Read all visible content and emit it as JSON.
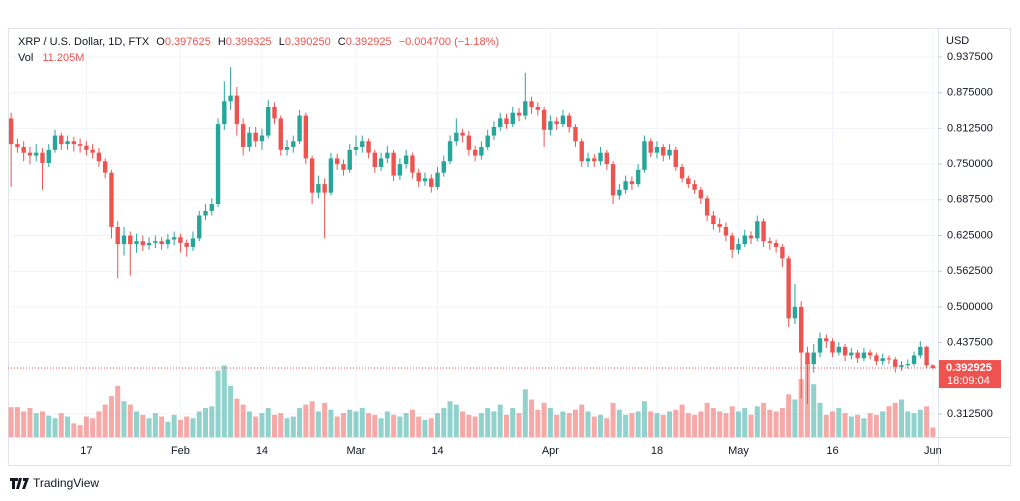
{
  "chart_data": {
    "type": "candlestick",
    "title": "XRP / U.S. Dollar, 1D, FTX",
    "ohlc_letters": [
      "O",
      "H",
      "L",
      "C"
    ],
    "header_value_labels": [
      "0.397625",
      "0.399325",
      "0.390250",
      "0.392925"
    ],
    "change": "−0.004700 (−1.18%)",
    "volume_name": "Vol",
    "volume_label": "11.205M",
    "axis_unit": "USD",
    "countdown": "18:09:04",
    "footer": "TradingView",
    "up_color": "#26a69a",
    "down_color": "#ef5350",
    "grid": true,
    "categories": [
      null,
      null,
      null,
      null,
      null,
      null,
      null,
      null,
      null,
      null,
      null,
      null,
      "17",
      null,
      null,
      null,
      null,
      null,
      null,
      null,
      null,
      null,
      null,
      null,
      null,
      null,
      null,
      "Feb",
      null,
      null,
      null,
      null,
      null,
      null,
      null,
      null,
      null,
      null,
      null,
      null,
      "14",
      null,
      null,
      null,
      null,
      null,
      null,
      null,
      null,
      null,
      null,
      null,
      null,
      null,
      null,
      "Mar",
      null,
      null,
      null,
      null,
      null,
      null,
      null,
      null,
      null,
      null,
      null,
      null,
      "14",
      null,
      null,
      null,
      null,
      null,
      null,
      null,
      null,
      null,
      null,
      null,
      null,
      null,
      null,
      null,
      null,
      null,
      "Apr",
      null,
      null,
      null,
      null,
      null,
      null,
      null,
      null,
      null,
      null,
      null,
      null,
      null,
      null,
      null,
      null,
      "18",
      null,
      null,
      null,
      null,
      null,
      null,
      null,
      null,
      null,
      null,
      null,
      null,
      "May",
      null,
      null,
      null,
      null,
      null,
      null,
      null,
      null,
      null,
      null,
      null,
      null,
      null,
      null,
      "16",
      null,
      null,
      null,
      null,
      null,
      null,
      null,
      null,
      null,
      null,
      null,
      null,
      null,
      null,
      null,
      "Jun"
    ],
    "open": [
      0.83,
      0.785,
      0.78,
      0.77,
      0.765,
      0.77,
      0.752,
      0.775,
      0.8,
      0.785,
      0.79,
      0.785,
      0.782,
      0.775,
      0.77,
      0.755,
      0.735,
      0.64,
      0.61,
      0.625,
      0.61,
      0.615,
      0.608,
      0.612,
      0.615,
      0.61,
      0.618,
      0.622,
      0.612,
      0.605,
      0.62,
      0.66,
      0.668,
      0.68,
      0.82,
      0.86,
      0.87,
      0.82,
      0.78,
      0.805,
      0.79,
      0.8,
      0.85,
      0.83,
      0.775,
      0.78,
      0.79,
      0.835,
      0.76,
      0.7,
      0.715,
      0.7,
      0.76,
      0.75,
      0.74,
      0.775,
      0.78,
      0.79,
      0.77,
      0.745,
      0.76,
      0.77,
      0.73,
      0.75,
      0.765,
      0.735,
      0.72,
      0.725,
      0.71,
      0.735,
      0.755,
      0.79,
      0.805,
      0.8,
      0.775,
      0.765,
      0.78,
      0.8,
      0.815,
      0.83,
      0.82,
      0.84,
      0.835,
      0.86,
      0.85,
      0.845,
      0.81,
      0.825,
      0.82,
      0.835,
      0.815,
      0.79,
      0.755,
      0.76,
      0.755,
      0.77,
      0.75,
      0.695,
      0.705,
      0.72,
      0.715,
      0.74,
      0.79,
      0.77,
      0.78,
      0.765,
      0.775,
      0.745,
      0.725,
      0.715,
      0.705,
      0.69,
      0.66,
      0.645,
      0.64,
      0.625,
      0.6,
      0.61,
      0.625,
      0.62,
      0.65,
      0.615,
      0.612,
      0.605,
      0.585,
      0.48,
      0.5,
      0.42,
      0.4,
      0.42,
      0.445,
      0.44,
      0.42,
      0.43,
      0.415,
      0.42,
      0.41,
      0.42,
      0.415,
      0.405,
      0.41,
      0.408,
      0.395,
      0.398,
      0.4,
      0.415,
      0.43,
      0.397625
    ],
    "high": [
      0.84,
      0.795,
      0.79,
      0.78,
      0.785,
      0.778,
      0.785,
      0.81,
      0.805,
      0.8,
      0.798,
      0.795,
      0.79,
      0.785,
      0.778,
      0.76,
      0.74,
      0.65,
      0.64,
      0.632,
      0.628,
      0.625,
      0.622,
      0.625,
      0.622,
      0.628,
      0.632,
      0.628,
      0.618,
      0.632,
      0.668,
      0.68,
      0.69,
      0.83,
      0.895,
      0.92,
      0.885,
      0.83,
      0.815,
      0.815,
      0.812,
      0.862,
      0.858,
      0.835,
      0.792,
      0.8,
      0.845,
      0.84,
      0.765,
      0.73,
      0.725,
      0.77,
      0.768,
      0.758,
      0.785,
      0.8,
      0.8,
      0.795,
      0.775,
      0.77,
      0.782,
      0.775,
      0.76,
      0.775,
      0.77,
      0.742,
      0.735,
      0.732,
      0.745,
      0.765,
      0.8,
      0.83,
      0.812,
      0.808,
      0.782,
      0.79,
      0.81,
      0.825,
      0.84,
      0.838,
      0.85,
      0.848,
      0.91,
      0.868,
      0.858,
      0.85,
      0.835,
      0.832,
      0.845,
      0.84,
      0.82,
      0.795,
      0.77,
      0.768,
      0.78,
      0.775,
      0.755,
      0.715,
      0.73,
      0.728,
      0.75,
      0.8,
      0.795,
      0.79,
      0.785,
      0.785,
      0.78,
      0.75,
      0.73,
      0.722,
      0.71,
      0.695,
      0.668,
      0.655,
      0.648,
      0.63,
      0.62,
      0.635,
      0.632,
      0.66,
      0.655,
      0.622,
      0.618,
      0.61,
      0.59,
      0.54,
      0.51,
      0.43,
      0.435,
      0.455,
      0.452,
      0.445,
      0.438,
      0.435,
      0.428,
      0.425,
      0.428,
      0.425,
      0.42,
      0.418,
      0.415,
      0.412,
      0.405,
      0.408,
      0.422,
      0.44,
      0.432,
      0.399325
    ],
    "low": [
      0.71,
      0.77,
      0.755,
      0.75,
      0.755,
      0.705,
      0.745,
      0.77,
      0.775,
      0.775,
      0.772,
      0.77,
      0.765,
      0.76,
      0.745,
      0.725,
      0.62,
      0.55,
      0.59,
      0.555,
      0.595,
      0.598,
      0.6,
      0.603,
      0.6,
      0.602,
      0.608,
      0.595,
      0.588,
      0.598,
      0.615,
      0.652,
      0.66,
      0.675,
      0.81,
      0.845,
      0.8,
      0.765,
      0.772,
      0.78,
      0.775,
      0.795,
      0.82,
      0.765,
      0.765,
      0.77,
      0.785,
      0.75,
      0.68,
      0.69,
      0.62,
      0.695,
      0.74,
      0.73,
      0.735,
      0.765,
      0.77,
      0.76,
      0.735,
      0.738,
      0.752,
      0.72,
      0.722,
      0.742,
      0.725,
      0.71,
      0.712,
      0.7,
      0.705,
      0.728,
      0.75,
      0.782,
      0.788,
      0.765,
      0.755,
      0.758,
      0.775,
      0.792,
      0.808,
      0.812,
      0.815,
      0.825,
      0.828,
      0.838,
      0.835,
      0.78,
      0.8,
      0.81,
      0.815,
      0.805,
      0.78,
      0.745,
      0.745,
      0.745,
      0.748,
      0.74,
      0.68,
      0.688,
      0.698,
      0.705,
      0.71,
      0.735,
      0.762,
      0.76,
      0.755,
      0.758,
      0.738,
      0.718,
      0.708,
      0.698,
      0.68,
      0.65,
      0.635,
      0.63,
      0.615,
      0.585,
      0.592,
      0.605,
      0.61,
      0.615,
      0.605,
      0.6,
      0.595,
      0.57,
      0.465,
      0.47,
      0.34,
      0.33,
      0.385,
      0.412,
      0.428,
      0.412,
      0.415,
      0.405,
      0.408,
      0.402,
      0.405,
      0.408,
      0.398,
      0.398,
      0.4,
      0.385,
      0.388,
      0.392,
      0.396,
      0.41,
      0.392,
      0.39025
    ],
    "close": [
      0.785,
      0.78,
      0.77,
      0.765,
      0.77,
      0.752,
      0.775,
      0.8,
      0.785,
      0.79,
      0.785,
      0.782,
      0.775,
      0.77,
      0.755,
      0.735,
      0.64,
      0.61,
      0.625,
      0.61,
      0.615,
      0.608,
      0.612,
      0.615,
      0.61,
      0.618,
      0.622,
      0.612,
      0.605,
      0.62,
      0.66,
      0.668,
      0.68,
      0.82,
      0.86,
      0.87,
      0.82,
      0.78,
      0.805,
      0.79,
      0.8,
      0.85,
      0.83,
      0.775,
      0.78,
      0.79,
      0.835,
      0.76,
      0.7,
      0.715,
      0.7,
      0.76,
      0.75,
      0.74,
      0.775,
      0.78,
      0.79,
      0.77,
      0.745,
      0.76,
      0.77,
      0.73,
      0.75,
      0.765,
      0.735,
      0.72,
      0.725,
      0.71,
      0.735,
      0.755,
      0.79,
      0.805,
      0.8,
      0.775,
      0.765,
      0.78,
      0.8,
      0.815,
      0.83,
      0.82,
      0.84,
      0.835,
      0.86,
      0.85,
      0.845,
      0.81,
      0.825,
      0.82,
      0.835,
      0.815,
      0.79,
      0.755,
      0.76,
      0.755,
      0.77,
      0.75,
      0.695,
      0.705,
      0.72,
      0.715,
      0.74,
      0.79,
      0.77,
      0.78,
      0.765,
      0.775,
      0.745,
      0.725,
      0.715,
      0.705,
      0.69,
      0.66,
      0.645,
      0.64,
      0.625,
      0.6,
      0.61,
      0.625,
      0.62,
      0.65,
      0.615,
      0.612,
      0.605,
      0.585,
      0.48,
      0.5,
      0.42,
      0.4,
      0.42,
      0.445,
      0.44,
      0.42,
      0.43,
      0.415,
      0.42,
      0.41,
      0.42,
      0.415,
      0.405,
      0.41,
      0.408,
      0.395,
      0.398,
      0.4,
      0.415,
      0.43,
      0.397625,
      0.392925
    ],
    "volume": [
      35,
      35,
      30,
      34,
      28,
      30,
      25,
      22,
      28,
      24,
      16,
      14,
      24,
      22,
      30,
      38,
      48,
      60,
      42,
      38,
      30,
      26,
      22,
      28,
      24,
      18,
      26,
      20,
      24,
      22,
      30,
      34,
      36,
      78,
      84,
      60,
      45,
      38,
      30,
      24,
      28,
      34,
      26,
      28,
      22,
      24,
      34,
      38,
      42,
      30,
      40,
      32,
      24,
      28,
      32,
      30,
      34,
      28,
      26,
      22,
      30,
      26,
      24,
      28,
      32,
      24,
      20,
      22,
      28,
      34,
      42,
      38,
      30,
      26,
      24,
      28,
      34,
      30,
      38,
      26,
      34,
      28,
      56,
      44,
      32,
      40,
      34,
      26,
      30,
      28,
      32,
      38,
      30,
      24,
      26,
      22,
      40,
      32,
      26,
      28,
      30,
      42,
      30,
      28,
      26,
      30,
      32,
      38,
      28,
      26,
      30,
      40,
      34,
      30,
      28,
      36,
      30,
      34,
      26,
      36,
      40,
      32,
      30,
      34,
      50,
      44,
      68,
      88,
      62,
      40,
      26,
      30,
      34,
      28,
      24,
      26,
      22,
      28,
      26,
      30,
      36,
      40,
      44,
      30,
      28,
      32,
      36,
      11.205
    ],
    "ylim": [
      0.2722,
      0.9883
    ],
    "yticks": [
      {
        "value": 0.9375,
        "label": "0.937500"
      },
      {
        "value": 0.875,
        "label": "0.875000"
      },
      {
        "value": 0.8125,
        "label": "0.812500"
      },
      {
        "value": 0.75,
        "label": "0.750000"
      },
      {
        "value": 0.6875,
        "label": "0.687500"
      },
      {
        "value": 0.625,
        "label": "0.625000"
      },
      {
        "value": 0.5625,
        "label": "0.562500"
      },
      {
        "value": 0.5,
        "label": "0.500000"
      },
      {
        "value": 0.4375,
        "label": "0.437500"
      },
      {
        "value": 0.3125,
        "label": "0.312500"
      }
    ]
  }
}
